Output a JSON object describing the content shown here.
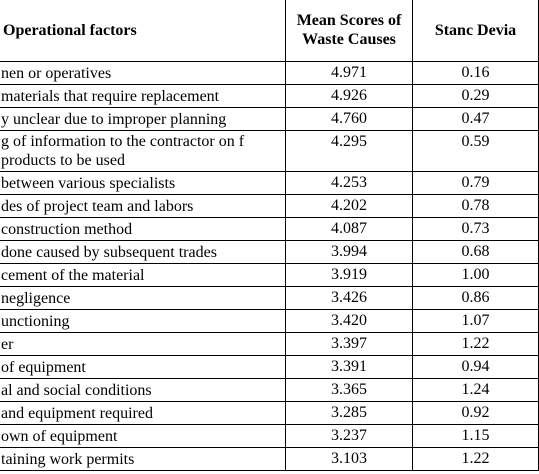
{
  "table": {
    "header": [
      "Operational factors",
      "Mean Scores of Waste Causes",
      "Stanc Devia"
    ],
    "rows": [
      [
        "nen or operatives",
        "4.971",
        "0.16"
      ],
      [
        "materials that require replacement",
        "4.926",
        "0.29"
      ],
      [
        "y unclear due to improper planning",
        "4.760",
        "0.47"
      ],
      [
        "g of information to the contractor on f products to be used",
        "4.295",
        "0.59"
      ],
      [
        "between various specialists",
        "4.253",
        "0.79"
      ],
      [
        "des of project team and labors",
        "4.202",
        "0.78"
      ],
      [
        "construction method",
        "4.087",
        "0.73"
      ],
      [
        "done caused by subsequent trades",
        "3.994",
        "0.68"
      ],
      [
        "cement of the material",
        "3.919",
        "1.00"
      ],
      [
        "negligence",
        "3.426",
        "0.86"
      ],
      [
        "unctioning",
        "3.420",
        "1.07"
      ],
      [
        "er",
        "3.397",
        "1.22"
      ],
      [
        "of equipment",
        "3.391",
        "0.94"
      ],
      [
        "al and social conditions",
        "3.365",
        "1.24"
      ],
      [
        "and equipment required",
        "3.285",
        "0.92"
      ],
      [
        "own of equipment",
        "3.237",
        "1.15"
      ],
      [
        "taining work permits",
        "3.103",
        "1.22"
      ]
    ]
  }
}
